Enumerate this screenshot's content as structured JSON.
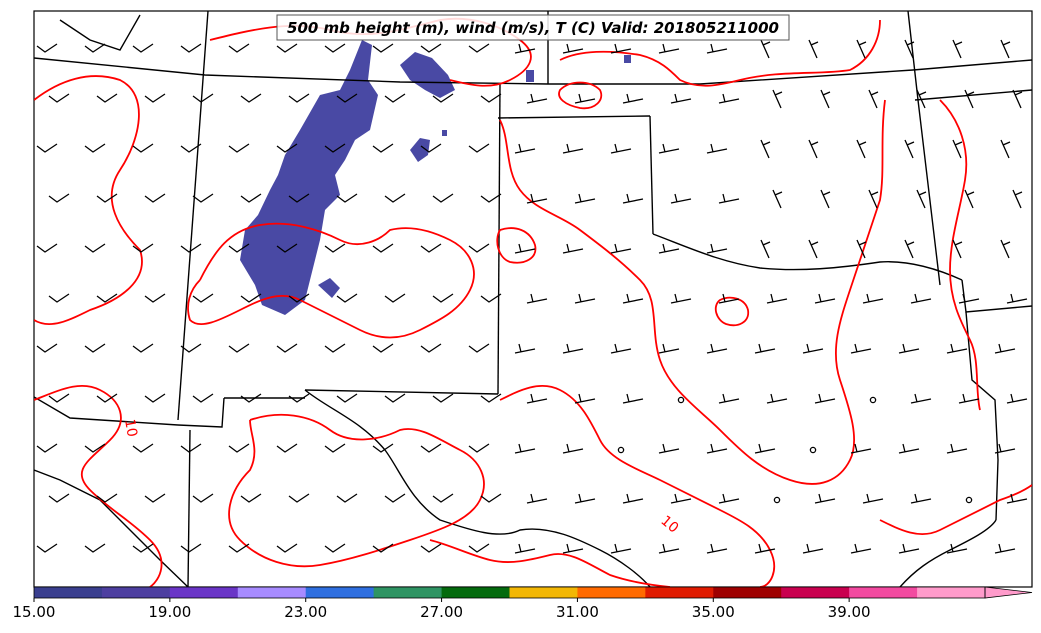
{
  "title": "500 mb height (m), wind (m/s), T (C) Valid: 201805211000",
  "colors": {
    "temperature_contour": "#ff0000",
    "boundaries": "#000000",
    "wind_barbs": "#000000",
    "wind_fill_low": "#3f3f9f"
  },
  "contour_labels": [
    "10",
    "10"
  ],
  "colorbar": {
    "ticks": [
      "15.00",
      "19.00",
      "23.00",
      "27.00",
      "31.00",
      "35.00",
      "39.00"
    ],
    "min": 15,
    "max": 43,
    "step": 2,
    "extend": "max",
    "colors": [
      "#3a3f8f",
      "#4d3fa0",
      "#6a35c7",
      "#a78bff",
      "#2f6fe0",
      "#2e9463",
      "#046b0e",
      "#f2b705",
      "#ff6a00",
      "#e01b00",
      "#9e0000",
      "#c9004f",
      "#f24aa0",
      "#ff9bcb"
    ]
  }
}
